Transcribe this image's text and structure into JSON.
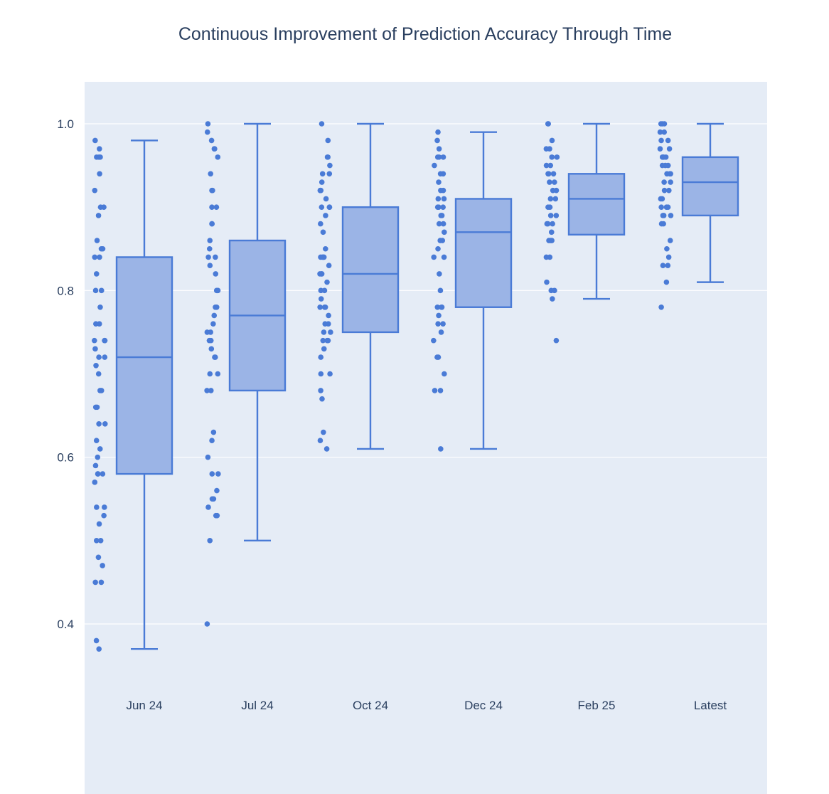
{
  "title": "Continuous Improvement of Prediction Accuracy Through Time",
  "colors": {
    "plot_background": "#e5ecf6",
    "gridline": "#ffffff",
    "box_line": "#4a7bd6",
    "box_fill": "#9bb4e6",
    "point": "#4a7bd6",
    "text": "#2a3f5f"
  },
  "chart_data": {
    "type": "box",
    "title": "Continuous Improvement of Prediction Accuracy Through Time",
    "xlabel": "",
    "ylabel": "",
    "ylim": [
      0.3,
      1.05
    ],
    "yticks": [
      0.4,
      0.6,
      0.8,
      1.0
    ],
    "ytick_labels": [
      "0.4",
      "0.6",
      "0.8",
      "1.0"
    ],
    "grid": true,
    "legend": "none",
    "boxpoints": "all",
    "categories": [
      "Jun 24",
      "Jul 24",
      "Oct 24",
      "Dec 24",
      "Feb 25",
      "Latest"
    ],
    "boxes": [
      {
        "name": "Jun 24",
        "lowerfence": 0.37,
        "q1": 0.58,
        "median": 0.72,
        "q3": 0.84,
        "upperfence": 0.98,
        "points": [
          0.97,
          0.96,
          0.98,
          0.96,
          0.96,
          0.94,
          0.92,
          0.9,
          0.9,
          0.89,
          0.86,
          0.85,
          0.85,
          0.84,
          0.84,
          0.82,
          0.8,
          0.8,
          0.78,
          0.76,
          0.76,
          0.74,
          0.74,
          0.74,
          0.73,
          0.72,
          0.72,
          0.71,
          0.7,
          0.68,
          0.68,
          0.66,
          0.66,
          0.64,
          0.64,
          0.62,
          0.61,
          0.6,
          0.59,
          0.58,
          0.58,
          0.58,
          0.57,
          0.54,
          0.54,
          0.53,
          0.52,
          0.5,
          0.5,
          0.48,
          0.47,
          0.45,
          0.45,
          0.38,
          0.37
        ]
      },
      {
        "name": "Jul 24",
        "lowerfence": 0.5,
        "q1": 0.68,
        "median": 0.77,
        "q3": 0.86,
        "upperfence": 1.0,
        "points": [
          1.0,
          0.99,
          0.98,
          0.97,
          0.97,
          0.96,
          0.94,
          0.92,
          0.92,
          0.9,
          0.9,
          0.88,
          0.88,
          0.86,
          0.85,
          0.84,
          0.84,
          0.83,
          0.82,
          0.8,
          0.8,
          0.8,
          0.78,
          0.78,
          0.77,
          0.76,
          0.75,
          0.75,
          0.74,
          0.74,
          0.73,
          0.72,
          0.72,
          0.7,
          0.7,
          0.68,
          0.68,
          0.63,
          0.62,
          0.6,
          0.58,
          0.58,
          0.56,
          0.55,
          0.55,
          0.54,
          0.53,
          0.53,
          0.5,
          0.4
        ]
      },
      {
        "name": "Oct 24",
        "lowerfence": 0.61,
        "q1": 0.75,
        "median": 0.82,
        "q3": 0.9,
        "upperfence": 1.0,
        "points": [
          1.0,
          0.98,
          0.96,
          0.96,
          0.95,
          0.94,
          0.94,
          0.93,
          0.92,
          0.92,
          0.92,
          0.91,
          0.9,
          0.9,
          0.9,
          0.89,
          0.88,
          0.87,
          0.85,
          0.84,
          0.84,
          0.84,
          0.84,
          0.83,
          0.82,
          0.82,
          0.82,
          0.81,
          0.8,
          0.8,
          0.79,
          0.78,
          0.78,
          0.78,
          0.77,
          0.76,
          0.76,
          0.75,
          0.75,
          0.74,
          0.74,
          0.74,
          0.73,
          0.72,
          0.7,
          0.7,
          0.68,
          0.67,
          0.63,
          0.62,
          0.61
        ]
      },
      {
        "name": "Dec 24",
        "lowerfence": 0.61,
        "q1": 0.78,
        "median": 0.87,
        "q3": 0.91,
        "upperfence": 0.99,
        "points": [
          0.99,
          0.98,
          0.97,
          0.96,
          0.96,
          0.96,
          0.95,
          0.94,
          0.94,
          0.93,
          0.92,
          0.92,
          0.91,
          0.91,
          0.9,
          0.9,
          0.9,
          0.89,
          0.89,
          0.88,
          0.88,
          0.87,
          0.86,
          0.86,
          0.85,
          0.84,
          0.84,
          0.82,
          0.8,
          0.78,
          0.78,
          0.78,
          0.77,
          0.76,
          0.76,
          0.75,
          0.74,
          0.72,
          0.72,
          0.7,
          0.68,
          0.68,
          0.61
        ]
      },
      {
        "name": "Feb 25",
        "lowerfence": 0.79,
        "q1": 0.867,
        "median": 0.91,
        "q3": 0.94,
        "upperfence": 1.0,
        "points": [
          1.0,
          1.0,
          0.98,
          0.97,
          0.97,
          0.96,
          0.96,
          0.95,
          0.95,
          0.94,
          0.94,
          0.94,
          0.93,
          0.93,
          0.92,
          0.92,
          0.91,
          0.91,
          0.9,
          0.9,
          0.89,
          0.89,
          0.88,
          0.88,
          0.88,
          0.87,
          0.86,
          0.86,
          0.86,
          0.84,
          0.84,
          0.81,
          0.8,
          0.8,
          0.79,
          0.74
        ]
      },
      {
        "name": "Latest",
        "lowerfence": 0.81,
        "q1": 0.89,
        "median": 0.93,
        "q3": 0.96,
        "upperfence": 1.0,
        "points": [
          1.0,
          1.0,
          1.0,
          0.99,
          0.99,
          0.98,
          0.98,
          0.97,
          0.97,
          0.96,
          0.96,
          0.96,
          0.96,
          0.95,
          0.95,
          0.95,
          0.94,
          0.94,
          0.94,
          0.93,
          0.93,
          0.92,
          0.92,
          0.91,
          0.91,
          0.9,
          0.9,
          0.9,
          0.89,
          0.89,
          0.89,
          0.88,
          0.88,
          0.86,
          0.85,
          0.84,
          0.83,
          0.83,
          0.81,
          0.78
        ]
      }
    ]
  }
}
